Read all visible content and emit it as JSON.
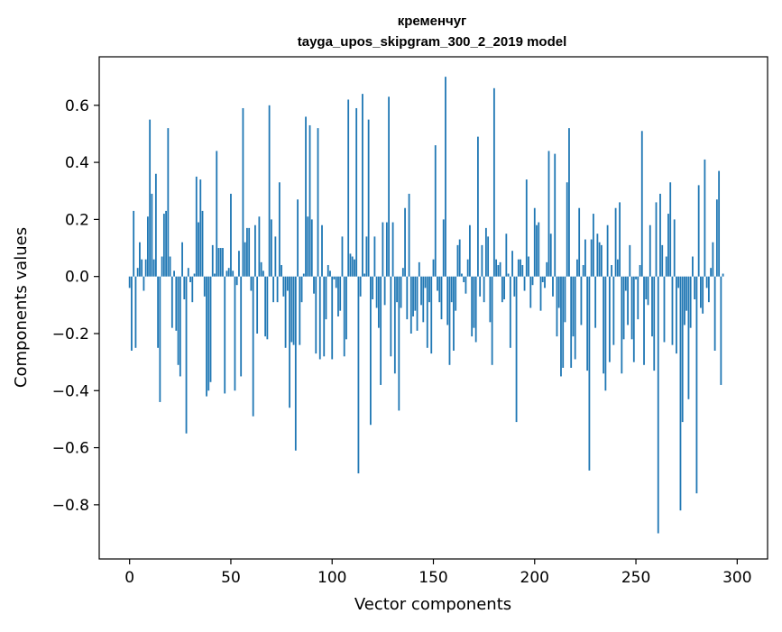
{
  "chart_data": {
    "type": "bar",
    "title_line1": "кременчуг",
    "title_line2": "tayga_upos_skipgram_300_2_2019 model",
    "xlabel": "Vector components",
    "ylabel": "Components values",
    "xlim": [
      -15,
      315
    ],
    "ylim": [
      -0.99,
      0.77
    ],
    "xticks": [
      0,
      50,
      100,
      150,
      200,
      250,
      300
    ],
    "xtick_labels": [
      "0",
      "50",
      "100",
      "150",
      "200",
      "250",
      "300"
    ],
    "yticks": [
      -0.8,
      -0.6,
      -0.4,
      -0.2,
      0.0,
      0.2,
      0.4,
      0.6
    ],
    "ytick_labels": [
      "−0.8",
      "−0.6",
      "−0.4",
      "−0.2",
      "0.0",
      "0.2",
      "0.4",
      "0.6"
    ],
    "bar_color": "#1f77b4",
    "grid": false,
    "values": [
      -0.04,
      -0.26,
      0.23,
      -0.25,
      0.03,
      0.12,
      0.06,
      -0.05,
      0.06,
      0.21,
      0.55,
      0.29,
      0.06,
      0.36,
      -0.25,
      -0.44,
      0.07,
      0.22,
      0.23,
      0.52,
      0.07,
      -0.18,
      0.02,
      -0.19,
      -0.31,
      -0.35,
      0.12,
      -0.08,
      -0.55,
      0.03,
      -0.02,
      -0.09,
      0.01,
      0.35,
      0.19,
      0.34,
      0.23,
      -0.07,
      -0.42,
      -0.4,
      -0.37,
      0.11,
      0.01,
      0.44,
      0.1,
      0.1,
      0.1,
      -0.41,
      0.02,
      0.03,
      0.29,
      0.02,
      -0.4,
      -0.03,
      0.09,
      -0.35,
      0.59,
      0.12,
      0.17,
      0.17,
      -0.05,
      -0.49,
      0.18,
      -0.2,
      0.21,
      0.05,
      0.02,
      -0.21,
      -0.22,
      0.6,
      0.2,
      -0.09,
      0.14,
      -0.09,
      0.33,
      0.04,
      -0.07,
      -0.25,
      -0.05,
      -0.46,
      -0.23,
      -0.24,
      -0.61,
      0.27,
      -0.24,
      -0.09,
      0.01,
      0.56,
      0.21,
      0.53,
      0.2,
      -0.06,
      -0.27,
      0.52,
      -0.29,
      0.18,
      -0.28,
      -0.15,
      0.04,
      0.02,
      -0.29,
      -0.01,
      -0.04,
      -0.14,
      -0.12,
      0.14,
      -0.28,
      -0.22,
      0.62,
      0.08,
      0.07,
      0.06,
      0.59,
      -0.69,
      -0.07,
      0.64,
      0.01,
      0.14,
      0.55,
      -0.52,
      -0.08,
      0.14,
      -0.11,
      -0.18,
      -0.38,
      0.19,
      -0.1,
      0.19,
      0.63,
      -0.28,
      0.19,
      -0.34,
      -0.09,
      -0.47,
      -0.11,
      0.03,
      0.24,
      -0.15,
      0.29,
      -0.2,
      -0.14,
      -0.12,
      -0.19,
      0.05,
      -0.1,
      -0.16,
      -0.04,
      -0.25,
      -0.09,
      -0.27,
      0.06,
      0.46,
      -0.05,
      -0.09,
      -0.15,
      0.2,
      0.7,
      -0.17,
      -0.31,
      -0.09,
      -0.26,
      -0.12,
      0.11,
      0.13,
      0.01,
      -0.02,
      -0.06,
      0.06,
      0.18,
      -0.21,
      -0.18,
      -0.23,
      0.49,
      -0.07,
      0.11,
      -0.09,
      0.17,
      0.14,
      -0.16,
      -0.31,
      0.66,
      0.06,
      0.04,
      0.05,
      -0.09,
      -0.08,
      0.15,
      0.01,
      -0.25,
      0.09,
      -0.07,
      -0.51,
      0.06,
      0.06,
      0.04,
      -0.05,
      0.34,
      0.07,
      -0.11,
      -0.03,
      0.24,
      0.18,
      0.19,
      -0.12,
      -0.02,
      -0.04,
      0.05,
      0.44,
      0.15,
      -0.07,
      0.43,
      -0.21,
      -0.11,
      -0.35,
      -0.32,
      -0.16,
      0.33,
      0.52,
      -0.32,
      -0.21,
      -0.29,
      0.06,
      0.24,
      -0.17,
      0.04,
      0.13,
      -0.33,
      -0.68,
      0.13,
      0.22,
      -0.18,
      0.15,
      0.12,
      0.11,
      -0.34,
      -0.4,
      0.18,
      -0.3,
      0.04,
      -0.24,
      0.24,
      0.06,
      0.26,
      -0.34,
      -0.22,
      -0.05,
      -0.17,
      0.11,
      -0.22,
      -0.3,
      -0.01,
      -0.15,
      0.04,
      0.51,
      -0.31,
      -0.08,
      -0.1,
      0.18,
      -0.21,
      -0.33,
      0.26,
      -0.9,
      0.29,
      0.11,
      -0.23,
      0.07,
      0.22,
      0.33,
      -0.24,
      0.2,
      -0.27,
      -0.04,
      -0.82,
      -0.51,
      -0.17,
      -0.12,
      -0.43,
      -0.18,
      0.07,
      -0.08,
      -0.76,
      0.32,
      -0.11,
      -0.13,
      0.41,
      -0.04,
      -0.09,
      0.03,
      0.12,
      -0.26,
      0.27,
      0.37,
      -0.38,
      0.01
    ]
  }
}
